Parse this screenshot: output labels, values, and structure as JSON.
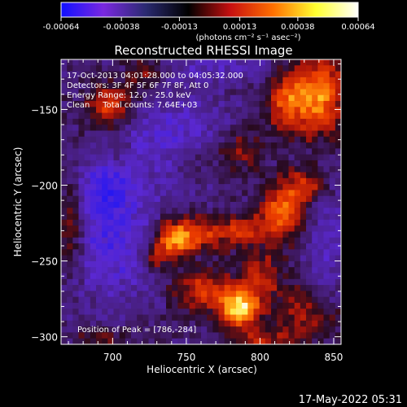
{
  "colorbar": {
    "ticks": [
      "-0.00064",
      "-0.00038",
      "-0.00013",
      "0.00013",
      "0.00038",
      "0.00064"
    ],
    "units_label": "(photons cm⁻² s⁻¹ asec⁻²)",
    "range": [
      -0.00064,
      0.00064
    ],
    "colors": [
      "#1010ff",
      "#7a28e0",
      "#2a2a70",
      "#000000",
      "#c81010",
      "#ff7000",
      "#ffff30",
      "#ffffff"
    ]
  },
  "annotations": {
    "line1": "17-Oct-2013 04:01:28.000 to 04:05:32.000",
    "line2": "Detectors: 3F 4F 5F 6F 7F 8F, Att 0",
    "line3": "Energy Range: 12.0 - 25.0 keV",
    "line4": "Clean     Total counts: 7.64E+03",
    "peak": "Position of Peak = [786,-284]"
  },
  "footer_timestamp": "17-May-2022 05:31",
  "chart_data": {
    "type": "heatmap",
    "title": "Reconstructed RHESSI Image",
    "xlabel": "Heliocentric X (arcsec)",
    "ylabel": "Heliocentric Y (arcsec)",
    "xlim": [
      665,
      855
    ],
    "ylim": [
      -305,
      -117
    ],
    "xticks": [
      700,
      750,
      800,
      850
    ],
    "yticks": [
      -150,
      -200,
      -250,
      -300
    ],
    "peak_position": [
      786,
      -284
    ],
    "sources": [
      {
        "x": 786,
        "y": -282,
        "sx": 9,
        "sy": 9,
        "amp": 1.0
      },
      {
        "x": 762,
        "y": -270,
        "sx": 14,
        "sy": 9,
        "amp": 0.55
      },
      {
        "x": 742,
        "y": -236,
        "sx": 9,
        "sy": 8,
        "amp": 0.78
      },
      {
        "x": 760,
        "y": -232,
        "sx": 16,
        "sy": 8,
        "amp": 0.5
      },
      {
        "x": 728,
        "y": -248,
        "sx": 7,
        "sy": 6,
        "amp": 0.45
      },
      {
        "x": 815,
        "y": -218,
        "sx": 10,
        "sy": 14,
        "amp": 0.7
      },
      {
        "x": 790,
        "y": -230,
        "sx": 11,
        "sy": 7,
        "amp": 0.42
      },
      {
        "x": 840,
        "y": -140,
        "sx": 12,
        "sy": 18,
        "amp": 0.82
      },
      {
        "x": 818,
        "y": -145,
        "sx": 9,
        "sy": 14,
        "amp": 0.6
      },
      {
        "x": 698,
        "y": -148,
        "sx": 11,
        "sy": 10,
        "amp": 0.62
      },
      {
        "x": 722,
        "y": -128,
        "sx": 9,
        "sy": 7,
        "amp": 0.38
      },
      {
        "x": 672,
        "y": -228,
        "sx": 6,
        "sy": 20,
        "amp": 0.45
      },
      {
        "x": 832,
        "y": -200,
        "sx": 9,
        "sy": 8,
        "amp": 0.48
      },
      {
        "x": 800,
        "y": -262,
        "sx": 10,
        "sy": 12,
        "amp": 0.45
      },
      {
        "x": 832,
        "y": -285,
        "sx": 14,
        "sy": 12,
        "amp": 0.38
      },
      {
        "x": 805,
        "y": -302,
        "sx": 14,
        "sy": 5,
        "amp": 0.4
      },
      {
        "x": 692,
        "y": -300,
        "sx": 14,
        "sy": 5,
        "amp": 0.28
      },
      {
        "x": 762,
        "y": -182,
        "sx": 18,
        "sy": 8,
        "amp": 0.22
      },
      {
        "x": 702,
        "y": -175,
        "sx": 7,
        "sy": 6,
        "amp": 0.25
      },
      {
        "x": 788,
        "y": -175,
        "sx": 10,
        "sy": 10,
        "amp": 0.3
      }
    ],
    "negative_regions": [
      {
        "x": 700,
        "y": -235,
        "sx": 22,
        "sy": 30,
        "amp": -0.45
      },
      {
        "x": 740,
        "y": -168,
        "sx": 28,
        "sy": 22,
        "amp": -0.35
      },
      {
        "x": 695,
        "y": -200,
        "sx": 12,
        "sy": 12,
        "amp": -0.3
      },
      {
        "x": 845,
        "y": -240,
        "sx": 10,
        "sy": 28,
        "amp": -0.28
      },
      {
        "x": 778,
        "y": -120,
        "sx": 30,
        "sy": 8,
        "amp": -0.25
      }
    ]
  }
}
